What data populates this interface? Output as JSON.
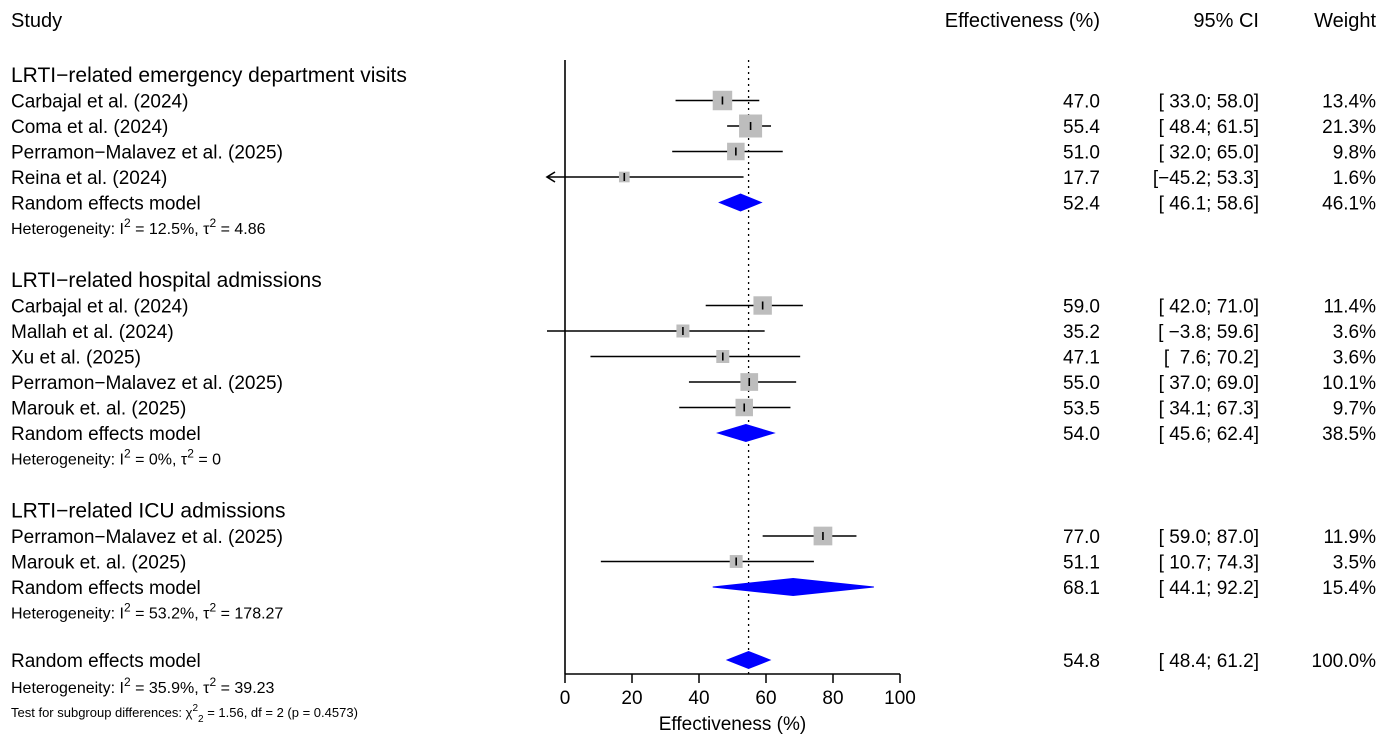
{
  "headers": {
    "study": "Study",
    "effect": "Effectiveness (%)",
    "ci": "95% CI",
    "weight": "Weight"
  },
  "colors": {
    "square": "#bdbdbd",
    "diamond": "#0000ff",
    "line": "#000000"
  },
  "chart_data": {
    "type": "forest",
    "xlim": [
      0,
      100
    ],
    "x_ticks": [
      "0",
      "20",
      "40",
      "60",
      "80",
      "100"
    ],
    "xlabel": "Effectiveness (%)",
    "overall_reference_line": 54.8,
    "subgroups": [
      {
        "title": "LRTI−related emergency department visits",
        "studies": [
          {
            "name": "Carbajal et al. (2024)",
            "est": 47.0,
            "lo": 33.0,
            "hi": 58.0,
            "est_text": "47.0",
            "ci_text": "[ 33.0; 58.0]",
            "weight_text": "13.4%",
            "weight": 13.4
          },
          {
            "name": "Coma et al. (2024)",
            "est": 55.4,
            "lo": 48.4,
            "hi": 61.5,
            "est_text": "55.4",
            "ci_text": "[ 48.4; 61.5]",
            "weight_text": "21.3%",
            "weight": 21.3
          },
          {
            "name": "Perramon−Malavez et al. (2025)",
            "est": 51.0,
            "lo": 32.0,
            "hi": 65.0,
            "est_text": "51.0",
            "ci_text": "[ 32.0; 65.0]",
            "weight_text": "9.8%",
            "weight": 9.8
          },
          {
            "name": "Reina et al. (2024)",
            "est": 17.7,
            "lo": -45.2,
            "hi": 53.3,
            "est_text": "17.7",
            "ci_text": "[−45.2; 53.3]",
            "weight_text": "1.6%",
            "weight": 1.6
          }
        ],
        "model": {
          "name": "Random effects model",
          "est": 52.4,
          "lo": 46.1,
          "hi": 58.6,
          "est_text": "52.4",
          "ci_text": "[ 46.1; 58.6]",
          "weight_text": "46.1%"
        },
        "heterogeneity": {
          "prefix": "Heterogeneity: I",
          "i2_sup": "2",
          "i2_value": " = 12.5%, ",
          "tau": "τ",
          "tau_sup": "2",
          "tau_value": " = 4.86"
        }
      },
      {
        "title": "LRTI−related hospital admissions",
        "studies": [
          {
            "name": "Carbajal et al. (2024)",
            "est": 59.0,
            "lo": 42.0,
            "hi": 71.0,
            "est_text": "59.0",
            "ci_text": "[ 42.0; 71.0]",
            "weight_text": "11.4%",
            "weight": 11.4
          },
          {
            "name": "Mallah et al. (2024)",
            "est": 35.2,
            "lo": -3.8,
            "hi": 59.6,
            "est_text": "35.2",
            "ci_text": "[ −3.8; 59.6]",
            "weight_text": "3.6%",
            "weight": 3.6
          },
          {
            "name": "Xu et al. (2025)",
            "est": 47.1,
            "lo": 7.6,
            "hi": 70.2,
            "est_text": "47.1",
            "ci_text": "[  7.6; 70.2]",
            "weight_text": "3.6%",
            "weight": 3.6
          },
          {
            "name": "Perramon−Malavez et al. (2025)",
            "est": 55.0,
            "lo": 37.0,
            "hi": 69.0,
            "est_text": "55.0",
            "ci_text": "[ 37.0; 69.0]",
            "weight_text": "10.1%",
            "weight": 10.1
          },
          {
            "name": "Marouk et. al. (2025)",
            "est": 53.5,
            "lo": 34.1,
            "hi": 67.3,
            "est_text": "53.5",
            "ci_text": "[ 34.1; 67.3]",
            "weight_text": "9.7%",
            "weight": 9.7
          }
        ],
        "model": {
          "name": "Random effects model",
          "est": 54.0,
          "lo": 45.6,
          "hi": 62.4,
          "est_text": "54.0",
          "ci_text": "[ 45.6; 62.4]",
          "weight_text": "38.5%"
        },
        "heterogeneity": {
          "prefix": "Heterogeneity: I",
          "i2_sup": "2",
          "i2_value": " = 0%, ",
          "tau": "τ",
          "tau_sup": "2",
          "tau_value": " = 0"
        }
      },
      {
        "title": "LRTI−related ICU admissions",
        "studies": [
          {
            "name": "Perramon−Malavez et al. (2025)",
            "est": 77.0,
            "lo": 59.0,
            "hi": 87.0,
            "est_text": "77.0",
            "ci_text": "[ 59.0; 87.0]",
            "weight_text": "11.9%",
            "weight": 11.9
          },
          {
            "name": "Marouk et. al. (2025)",
            "est": 51.1,
            "lo": 10.7,
            "hi": 74.3,
            "est_text": "51.1",
            "ci_text": "[ 10.7; 74.3]",
            "weight_text": "3.5%",
            "weight": 3.5
          }
        ],
        "model": {
          "name": "Random effects model",
          "est": 68.1,
          "lo": 44.1,
          "hi": 92.2,
          "est_text": "68.1",
          "ci_text": "[ 44.1; 92.2]",
          "weight_text": "15.4%"
        },
        "heterogeneity": {
          "prefix": "Heterogeneity: I",
          "i2_sup": "2",
          "i2_value": " = 53.2%, ",
          "tau": "τ",
          "tau_sup": "2",
          "tau_value": " = 178.27"
        }
      }
    ],
    "overall": {
      "model": {
        "name": "Random effects model",
        "est": 54.8,
        "lo": 48.4,
        "hi": 61.2,
        "est_text": "54.8",
        "ci_text": "[ 48.4; 61.2]",
        "weight_text": "100.0%"
      },
      "heterogeneity": {
        "prefix": "Heterogeneity: I",
        "i2_sup": "2",
        "i2_value": " = 35.9%, ",
        "tau": "τ",
        "tau_sup": "2",
        "tau_value": " = 39.23"
      },
      "subgroup_test": {
        "prefix": "Test for subgroup differences: ",
        "chi": "χ",
        "chi_sup": "2",
        "chi_sub": "2",
        "rest": " = 1.56, df = 2 (p = 0.4573)"
      }
    }
  }
}
